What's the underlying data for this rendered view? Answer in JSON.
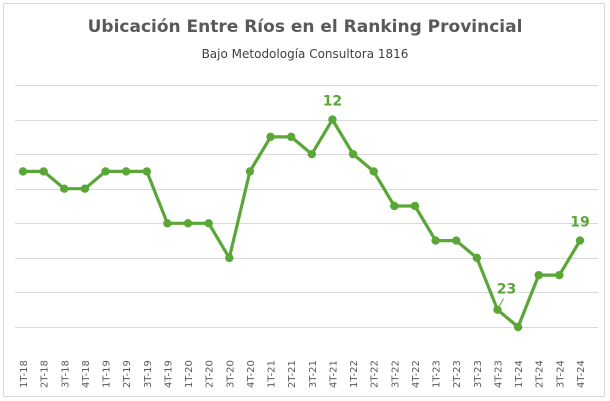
{
  "chart_data": {
    "type": "line",
    "title": "Ubicación Entre Ríos en el Ranking Provincial",
    "subtitle": "Bajo Metodología Consultora 1816",
    "categories": [
      "1T-18",
      "2T-18",
      "3T-18",
      "4T-18",
      "1T-19",
      "2T-19",
      "3T-19",
      "4T-19",
      "1T-20",
      "2T-20",
      "3T-20",
      "4T-20",
      "1T-21",
      "2T-21",
      "3T-21",
      "4T-21",
      "1T-22",
      "2T-22",
      "3T-22",
      "4T-22",
      "1T-23",
      "2T-23",
      "3T-23",
      "4T-23",
      "1T-24",
      "2T-24",
      "3T-24",
      "4T-24"
    ],
    "series": [
      {
        "values": [
          15,
          15,
          16,
          16,
          15,
          15,
          15,
          18,
          18,
          18,
          20,
          15,
          13,
          13,
          14,
          12,
          14,
          15,
          17,
          17,
          19,
          19,
          20,
          23,
          24,
          21,
          21,
          19
        ]
      }
    ],
    "y_inverted": true,
    "ylim": [
      12,
      24
    ],
    "data_labels": [
      {
        "category": "4T-21",
        "text": "12"
      },
      {
        "category": "4T-23",
        "text": "23"
      },
      {
        "category": "4T-24",
        "text": "19"
      }
    ],
    "grid": true,
    "y_tick_labels_shown": false,
    "colors": {
      "line": "#5aa637",
      "label": "#5aa637",
      "grid": "#d9d9d9",
      "text": "#595959"
    }
  }
}
